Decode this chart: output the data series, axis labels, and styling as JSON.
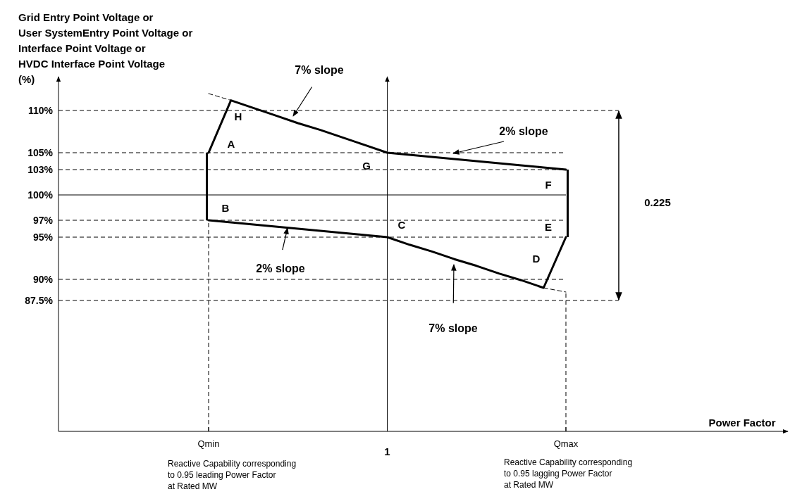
{
  "chart_data": {
    "type": "line",
    "ylabel": "Grid Entry Point Voltage or\nUser SystemEntry Point Voltage or\nInterface Point Voltage or\nHVDC Interface Point Voltage\n(%)",
    "categories": [
      "Qmin",
      null,
      null,
      null,
      null,
      null,
      null,
      null,
      "1",
      null,
      null,
      null,
      null,
      null,
      null,
      null,
      "Qmax"
    ],
    "ylim": [
      72,
      114
    ],
    "yticks": [
      {
        "value": 87.5,
        "label": "87.5%"
      },
      {
        "value": 90,
        "label": "90%"
      },
      {
        "value": 95,
        "label": "95%"
      },
      {
        "value": 97,
        "label": "97%"
      },
      {
        "value": 100,
        "label": "100%"
      },
      {
        "value": 103,
        "label": "103%"
      },
      {
        "value": 105,
        "label": "105%"
      },
      {
        "value": 110,
        "label": "110%"
      }
    ],
    "grid": false,
    "marker": "none",
    "series": [
      {
        "color": "#000000",
        "line_style": "solid",
        "values": [
          105,
          111.2,
          110.3,
          109.4,
          108.5,
          107.7,
          106.8,
          105.9,
          105,
          104.75,
          104.5,
          104.25,
          104,
          103.75,
          103.5,
          103.25,
          103
        ]
      },
      {
        "color": "#000000",
        "line_style": "solid",
        "values": [
          97,
          96.75,
          96.5,
          96.25,
          96,
          95.75,
          95.5,
          95.25,
          95,
          94.1,
          93.3,
          92.4,
          91.6,
          90.7,
          89.9,
          89,
          95
        ]
      },
      {
        "type": "bar",
        "color": "#000000",
        "values": [
          8,
          null,
          null,
          null,
          null,
          null,
          null,
          null,
          null,
          null,
          null,
          null,
          null,
          null,
          null,
          null,
          8
        ],
        "base": [
          97,
          null,
          null,
          null,
          null,
          null,
          null,
          null,
          null,
          null,
          null,
          null,
          null,
          null,
          null,
          null,
          95
        ]
      },
      {
        "color": "#000000",
        "line_style": "dashed",
        "values": [
          112,
          111.2,
          null,
          null,
          null,
          null,
          null,
          null,
          null,
          null,
          null,
          null,
          null,
          null,
          null,
          null,
          null
        ]
      },
      {
        "color": "#000000",
        "line_style": "dashed",
        "values": [
          null,
          null,
          null,
          null,
          null,
          null,
          null,
          null,
          null,
          null,
          null,
          null,
          null,
          null,
          null,
          89,
          88.5
        ]
      }
    ],
    "ref_lines": [
      {
        "axis": "y",
        "value": 110,
        "line_style": "dashed"
      },
      {
        "axis": "y",
        "value": 105,
        "line_style": "dashed"
      },
      {
        "axis": "y",
        "value": 103,
        "line_style": "dashed"
      },
      {
        "axis": "y",
        "value": 100,
        "line_style": "solid"
      },
      {
        "axis": "y",
        "value": 97,
        "line_style": "dashed"
      },
      {
        "axis": "y",
        "value": 95,
        "line_style": "dashed"
      },
      {
        "axis": "y",
        "value": 90,
        "line_style": "dashed"
      },
      {
        "axis": "y",
        "value": 87.5,
        "line_style": "dashed"
      },
      {
        "axis": "x",
        "value": "Qmin",
        "line_style": "dashed"
      },
      {
        "axis": "x",
        "value": "1",
        "line_style": "solid"
      },
      {
        "axis": "x",
        "value": "Qmax",
        "line_style": "dashed"
      }
    ],
    "annotations": [
      "A",
      "B",
      "C",
      "D",
      "E",
      "F",
      "G",
      "H",
      "7% slope",
      "2% slope",
      "2% slope",
      "7% slope",
      "0.225",
      "Power Factor",
      "Reactive Capability corresponding\nto 0.95 leading Power Factor\nat Rated MW",
      "Reactive Capability corresponding\nto 0.95 lagging Power Factor\nat Rated MW"
    ]
  }
}
